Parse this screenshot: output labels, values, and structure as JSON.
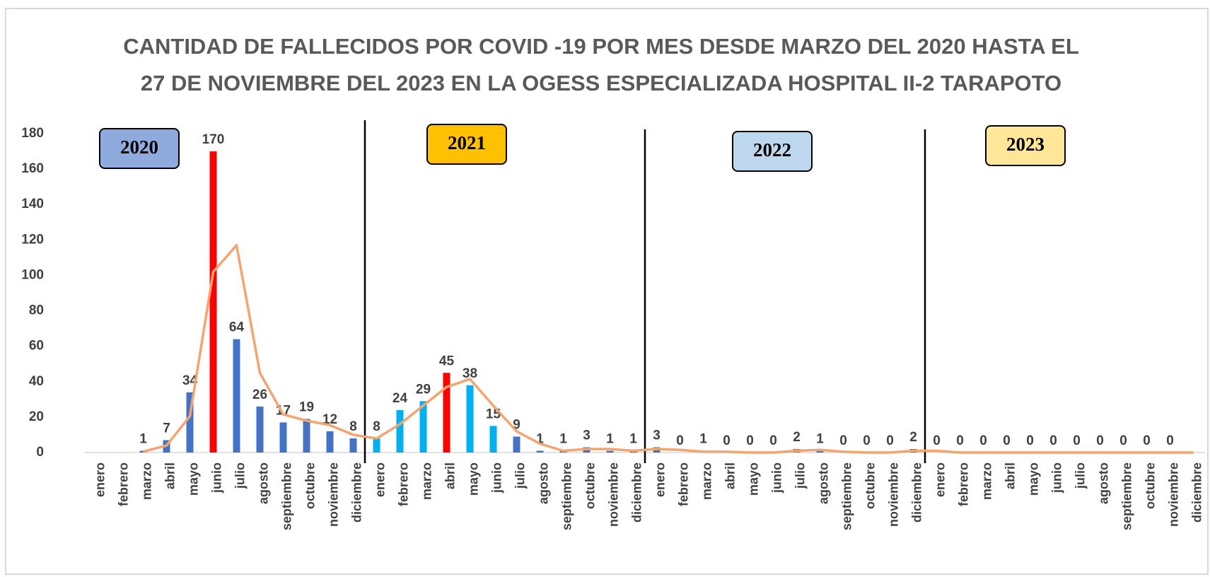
{
  "chart_data": {
    "type": "bar",
    "title": [
      "CANTIDAD DE FALLECIDOS POR COVID -19  POR MES  DESDE MARZO DEL 2020 HASTA EL",
      "27 DE NOVIEMBRE DEL 2023 EN LA OGESS ESPECIALIZADA HOSPITAL II-2 TARAPOTO"
    ],
    "categories": [
      "enero",
      "febrero",
      "marzo",
      "abril",
      "mayo",
      "junio",
      "julio",
      "agosto",
      "septiembre",
      "octubre",
      "noviembre",
      "diciembre",
      "enero",
      "febrero",
      "marzo",
      "abril",
      "mayo",
      "junio",
      "julio",
      "agosto",
      "septiembre",
      "octubre",
      "noviembre",
      "diciembre",
      "enero",
      "febrero",
      "marzo",
      "abril",
      "mayo",
      "junio",
      "julio",
      "agosto",
      "septiembre",
      "octubre",
      "noviembre",
      "diciembre",
      "enero",
      "febrero",
      "marzo",
      "abril",
      "mayo",
      "junio",
      "julio",
      "agosto",
      "septiembre",
      "octubre",
      "noviembre",
      "diciembre"
    ],
    "series": [
      {
        "type": "bar",
        "colors": [
          "#4472c4",
          "#4472c4",
          "#4472c4",
          "#4472c4",
          "#4472c4",
          "#ff0000",
          "#4472c4",
          "#4472c4",
          "#4472c4",
          "#4472c4",
          "#4472c4",
          "#4472c4",
          "#00b0f0",
          "#00b0f0",
          "#00b0f0",
          "#ff0000",
          "#00b0f0",
          "#00b0f0",
          "#4472c4",
          "#4472c4",
          "#4472c4",
          "#4472c4",
          "#4472c4",
          "#4472c4",
          "#4472c4",
          "#4472c4",
          "#4472c4",
          "#4472c4",
          "#4472c4",
          "#4472c4",
          "#4472c4",
          "#4472c4",
          "#4472c4",
          "#4472c4",
          "#4472c4",
          "#4472c4",
          "#4472c4",
          "#4472c4",
          "#4472c4",
          "#4472c4",
          "#4472c4",
          "#4472c4",
          "#4472c4",
          "#4472c4",
          "#4472c4",
          "#4472c4",
          "#4472c4",
          "#4472c4"
        ],
        "values": [
          null,
          null,
          1,
          7,
          34,
          170,
          64,
          26,
          17,
          19,
          12,
          8,
          8,
          24,
          29,
          45,
          38,
          15,
          9,
          1,
          1,
          3,
          1,
          1,
          3,
          0,
          1,
          0,
          0,
          0,
          2,
          1,
          0,
          0,
          0,
          2,
          0,
          0,
          0,
          0,
          0,
          0,
          0,
          0,
          0,
          0,
          0,
          null
        ]
      },
      {
        "type": "line",
        "color": "#f4a46f",
        "values": [
          null,
          null,
          0.5,
          4,
          20.5,
          102,
          117,
          45,
          21.5,
          18,
          15.5,
          10,
          8,
          16,
          26.5,
          37,
          41.5,
          26.5,
          12,
          5,
          1,
          2,
          2,
          1,
          2,
          1.5,
          0.5,
          0.5,
          0,
          0,
          1,
          1.5,
          0.5,
          0,
          0,
          1,
          1,
          0,
          0,
          0,
          0,
          0,
          0,
          0,
          0,
          0,
          0,
          0
        ]
      }
    ],
    "annotations": [
      {
        "text": "2020",
        "color": "#8faadc"
      },
      {
        "text": "2021",
        "color": "#ffc000"
      },
      {
        "text": "2022",
        "color": "#bdd7ee"
      },
      {
        "text": "2023",
        "color": "#ffe699"
      }
    ],
    "ylim": [
      0,
      180
    ],
    "yticks": [
      0,
      20,
      40,
      60,
      80,
      100,
      120,
      140,
      160,
      180
    ]
  }
}
